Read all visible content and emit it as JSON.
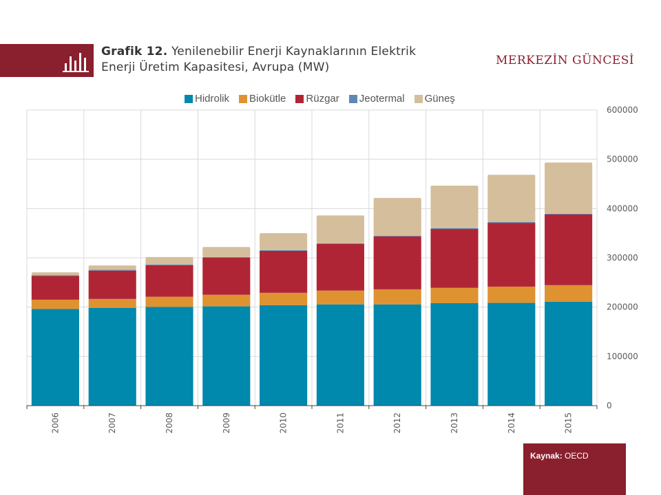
{
  "header": {
    "title_bold": "Grafik 12.",
    "title_line1": "Yenilenebilir Enerji Kaynaklarının Elektrik",
    "title_line2": "Enerji Üretim Kapasitesi,  Avrupa (MW)",
    "brand": "MERKEZİN GÜNCESİ",
    "icon": "bar-chart-icon"
  },
  "source": {
    "label": "Kaynak:",
    "value": "OECD"
  },
  "chart_data": {
    "type": "bar",
    "stacked": true,
    "title": "Yenilenebilir Enerji Kaynaklarının Elektrik Enerji Üretim Kapasitesi, Avrupa (MW)",
    "xlabel": "",
    "ylabel": "",
    "ylim": [
      0,
      600000
    ],
    "yticks": [
      "0",
      "100000",
      "200000",
      "300000",
      "400000",
      "500000",
      "600000"
    ],
    "y_axis_side": "right",
    "grid": true,
    "legend_position": "top",
    "categories": [
      "2006",
      "2007",
      "2008",
      "2009",
      "2010",
      "2011",
      "2012",
      "2013",
      "2014",
      "2015"
    ],
    "series": [
      {
        "name": "Hidrolik",
        "color": "#0088ad",
        "values": [
          196000,
          198500,
          200500,
          201500,
          204000,
          205500,
          205500,
          208000,
          208500,
          211000
        ]
      },
      {
        "name": "Biokütle",
        "color": "#de9230",
        "values": [
          19000,
          18000,
          20500,
          23500,
          25000,
          28000,
          30500,
          31000,
          33000,
          33500
        ]
      },
      {
        "name": "Rüzgar",
        "color": "#b02535",
        "values": [
          48000,
          57500,
          64000,
          75000,
          85000,
          94500,
          107500,
          119500,
          129500,
          143500
        ]
      },
      {
        "name": "Jeotermal",
        "color": "#5f88b3",
        "values": [
          1500,
          1500,
          1500,
          1500,
          1500,
          1500,
          1500,
          1500,
          1500,
          1500
        ]
      },
      {
        "name": "Güneş",
        "color": "#d5be9c",
        "values": [
          6000,
          9000,
          15000,
          20500,
          34500,
          56500,
          76500,
          86500,
          96000,
          104000
        ]
      }
    ]
  }
}
